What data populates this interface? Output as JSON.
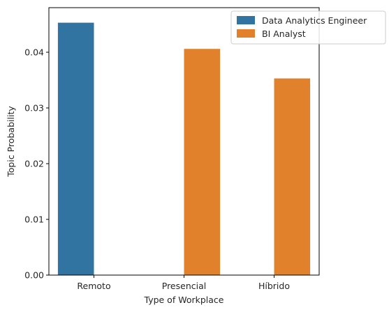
{
  "chart_data": {
    "type": "bar",
    "title": "",
    "xlabel": "Type of Workplace",
    "ylabel": "Topic Probability",
    "categories": [
      "Remoto",
      "Presencial",
      "Híbrido"
    ],
    "series": [
      {
        "name": "Data Analytics Engineer",
        "color": "#3274a1",
        "values": [
          0.0453,
          null,
          null
        ]
      },
      {
        "name": "BI Analyst",
        "color": "#e1812c",
        "values": [
          null,
          0.0406,
          0.0353
        ]
      }
    ],
    "ylim": [
      0,
      0.048
    ],
    "yticks": [
      0.0,
      0.01,
      0.02,
      0.03,
      0.04
    ],
    "ytick_labels": [
      "0.00",
      "0.01",
      "0.02",
      "0.03",
      "0.04"
    ],
    "grid": false,
    "legend_position": "top-right"
  }
}
